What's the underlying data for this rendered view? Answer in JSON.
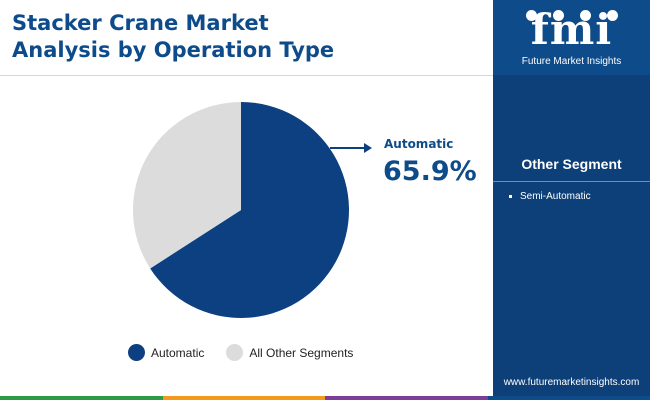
{
  "title_line1": "Stacker Crane Market",
  "title_line2": "Analysis by Operation Type",
  "callout": {
    "label": "Automatic",
    "value": "65.9%"
  },
  "chart_data": {
    "type": "pie",
    "title": "Stacker Crane Market Analysis by Operation Type",
    "slices": [
      {
        "label": "Automatic",
        "value": 65.9,
        "color": "#0d4080"
      },
      {
        "label": "All Other Segments",
        "value": 34.1,
        "color": "#dcdcdc"
      }
    ],
    "legend_position": "bottom"
  },
  "legend": [
    {
      "label": "Automatic",
      "color": "#0d4080"
    },
    {
      "label": "All Other Segments",
      "color": "#dcdcdc"
    }
  ],
  "sidebar": {
    "logo_mark": "fmi",
    "logo_text": "Future Market Insights",
    "segment_title": "Other Segment",
    "segments": [
      "Semi-Automatic"
    ],
    "website": "www.futuremarketinsights.com"
  },
  "colors": {
    "brand_dark": "#0d3f78",
    "brand": "#0d4b8a",
    "footer": [
      "#2f9a46",
      "#f39a1e",
      "#7b3f98",
      "#0d4b8a"
    ]
  }
}
